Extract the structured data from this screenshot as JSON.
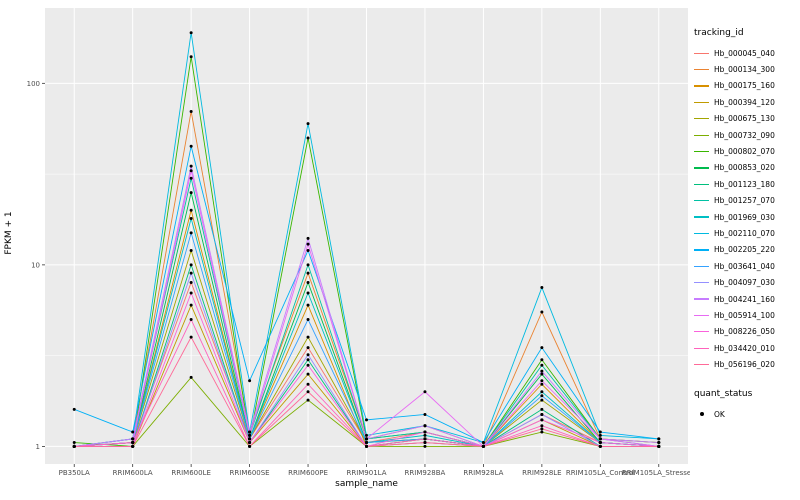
{
  "panel": {
    "bg": "#EBEBEB",
    "grid": "#FFFFFF",
    "tick_color": "#333333",
    "tick_label_color": "#4d4d4d"
  },
  "chart_data": {
    "type": "line",
    "title": "",
    "xlabel": "sample_name",
    "ylabel": "FPKM + 1",
    "y_scale": "log10",
    "y_ticks": [
      1,
      10,
      100
    ],
    "y_minor": [
      3.162,
      31.62
    ],
    "ylim": [
      0.8,
      260
    ],
    "grid": true,
    "legend_position": "right",
    "legend_title": "tracking_id",
    "point_color": "#000000",
    "quant_status": {
      "title": "quant_status",
      "label": "OK"
    },
    "categories": [
      "PB350LA",
      "RRIM600LA",
      "RRIM600LE",
      "RRIM600SE",
      "RRIM600PE",
      "RRIM901LA",
      "RRIM928BA",
      "RRIM928LA",
      "RRIM928LE",
      "RRIM105LA_Control",
      "RRIM105LA_Stressed"
    ],
    "series": [
      {
        "name": "Hb_000045_040",
        "color": "#F8766D",
        "values": [
          1.0,
          1.05,
          8,
          1.1,
          3.5,
          1.05,
          1.2,
          1.0,
          1.5,
          1.05,
          1.0
        ]
      },
      {
        "name": "Hb_000134_300",
        "color": "#EA8331",
        "values": [
          1.0,
          1.1,
          70,
          1.2,
          9,
          1.1,
          1.3,
          1.0,
          5.5,
          1.1,
          1.05
        ]
      },
      {
        "name": "Hb_000175_160",
        "color": "#D89000",
        "values": [
          1.0,
          1.05,
          20,
          1.1,
          6,
          1.0,
          1.1,
          1.0,
          2.2,
          1.05,
          1.0
        ]
      },
      {
        "name": "Hb_000394_120",
        "color": "#C09B00",
        "values": [
          1.0,
          1.0,
          6,
          1.05,
          2.5,
          1.0,
          1.05,
          1.0,
          1.4,
          1.0,
          1.0
        ]
      },
      {
        "name": "Hb_000675_130",
        "color": "#A3A500",
        "values": [
          1.0,
          1.05,
          12,
          1.1,
          4,
          1.05,
          1.1,
          1.0,
          1.8,
          1.05,
          1.0
        ]
      },
      {
        "name": "Hb_000732_090",
        "color": "#7CAE00",
        "values": [
          1.0,
          1.0,
          2.4,
          1.0,
          1.8,
          1.0,
          1.0,
          1.0,
          1.2,
          1.0,
          1.0
        ]
      },
      {
        "name": "Hb_000802_070",
        "color": "#39B600",
        "values": [
          1.05,
          1.0,
          140,
          1.1,
          50,
          1.1,
          1.2,
          1.0,
          3.0,
          1.1,
          1.05
        ]
      },
      {
        "name": "Hb_000853_020",
        "color": "#00BB4E",
        "values": [
          1.0,
          1.05,
          25,
          1.1,
          8,
          1.05,
          1.1,
          1.0,
          2.5,
          1.05,
          1.0
        ]
      },
      {
        "name": "Hb_001123_180",
        "color": "#00BF7D",
        "values": [
          1.0,
          1.0,
          10,
          1.05,
          3.0,
          1.0,
          1.1,
          1.0,
          1.6,
          1.0,
          1.0
        ]
      },
      {
        "name": "Hb_001257_070",
        "color": "#00C1A3",
        "values": [
          1.0,
          1.1,
          30,
          1.15,
          10,
          1.1,
          1.2,
          1.0,
          2.8,
          1.1,
          1.0
        ]
      },
      {
        "name": "Hb_001969_030",
        "color": "#00BFC4",
        "values": [
          1.0,
          1.05,
          18,
          1.1,
          7,
          1.05,
          1.15,
          1.0,
          2.0,
          1.05,
          1.0
        ]
      },
      {
        "name": "Hb_002110_070",
        "color": "#00BAE0",
        "values": [
          1.0,
          1.1,
          190,
          1.2,
          60,
          1.15,
          1.3,
          1.05,
          7.5,
          1.15,
          1.1
        ]
      },
      {
        "name": "Hb_002205_220",
        "color": "#00B0F6",
        "values": [
          1.6,
          1.2,
          45,
          2.3,
          12,
          1.4,
          1.5,
          1.05,
          3.5,
          1.2,
          1.1
        ]
      },
      {
        "name": "Hb_003641_040",
        "color": "#35A2FF",
        "values": [
          1.0,
          1.05,
          15,
          1.1,
          5,
          1.05,
          1.1,
          1.0,
          1.9,
          1.05,
          1.0
        ]
      },
      {
        "name": "Hb_004097_030",
        "color": "#9590FF",
        "values": [
          1.0,
          1.0,
          9,
          1.05,
          3.2,
          1.0,
          1.05,
          1.0,
          1.5,
          1.0,
          1.0
        ]
      },
      {
        "name": "Hb_004241_160",
        "color": "#C77CFF",
        "values": [
          1.0,
          1.1,
          35,
          1.2,
          14,
          1.1,
          1.3,
          1.0,
          2.6,
          1.1,
          1.05
        ]
      },
      {
        "name": "Hb_005914_100",
        "color": "#E76BF3",
        "values": [
          1.0,
          1.05,
          33,
          1.15,
          13,
          1.1,
          2.0,
          1.0,
          2.3,
          1.1,
          1.0
        ]
      },
      {
        "name": "Hb_008226_050",
        "color": "#FA62DB",
        "values": [
          1.0,
          1.0,
          7,
          1.05,
          2.8,
          1.0,
          1.2,
          1.0,
          1.4,
          1.05,
          1.0
        ]
      },
      {
        "name": "Hb_034420_010",
        "color": "#FF62BC",
        "values": [
          1.0,
          1.05,
          5,
          1.0,
          2.2,
          1.0,
          1.1,
          1.0,
          1.3,
          1.0,
          1.0
        ]
      },
      {
        "name": "Hb_056196_020",
        "color": "#FF6A98",
        "values": [
          1.0,
          1.0,
          4,
          1.0,
          2.0,
          1.0,
          1.05,
          1.0,
          1.25,
          1.0,
          1.0
        ]
      }
    ]
  }
}
